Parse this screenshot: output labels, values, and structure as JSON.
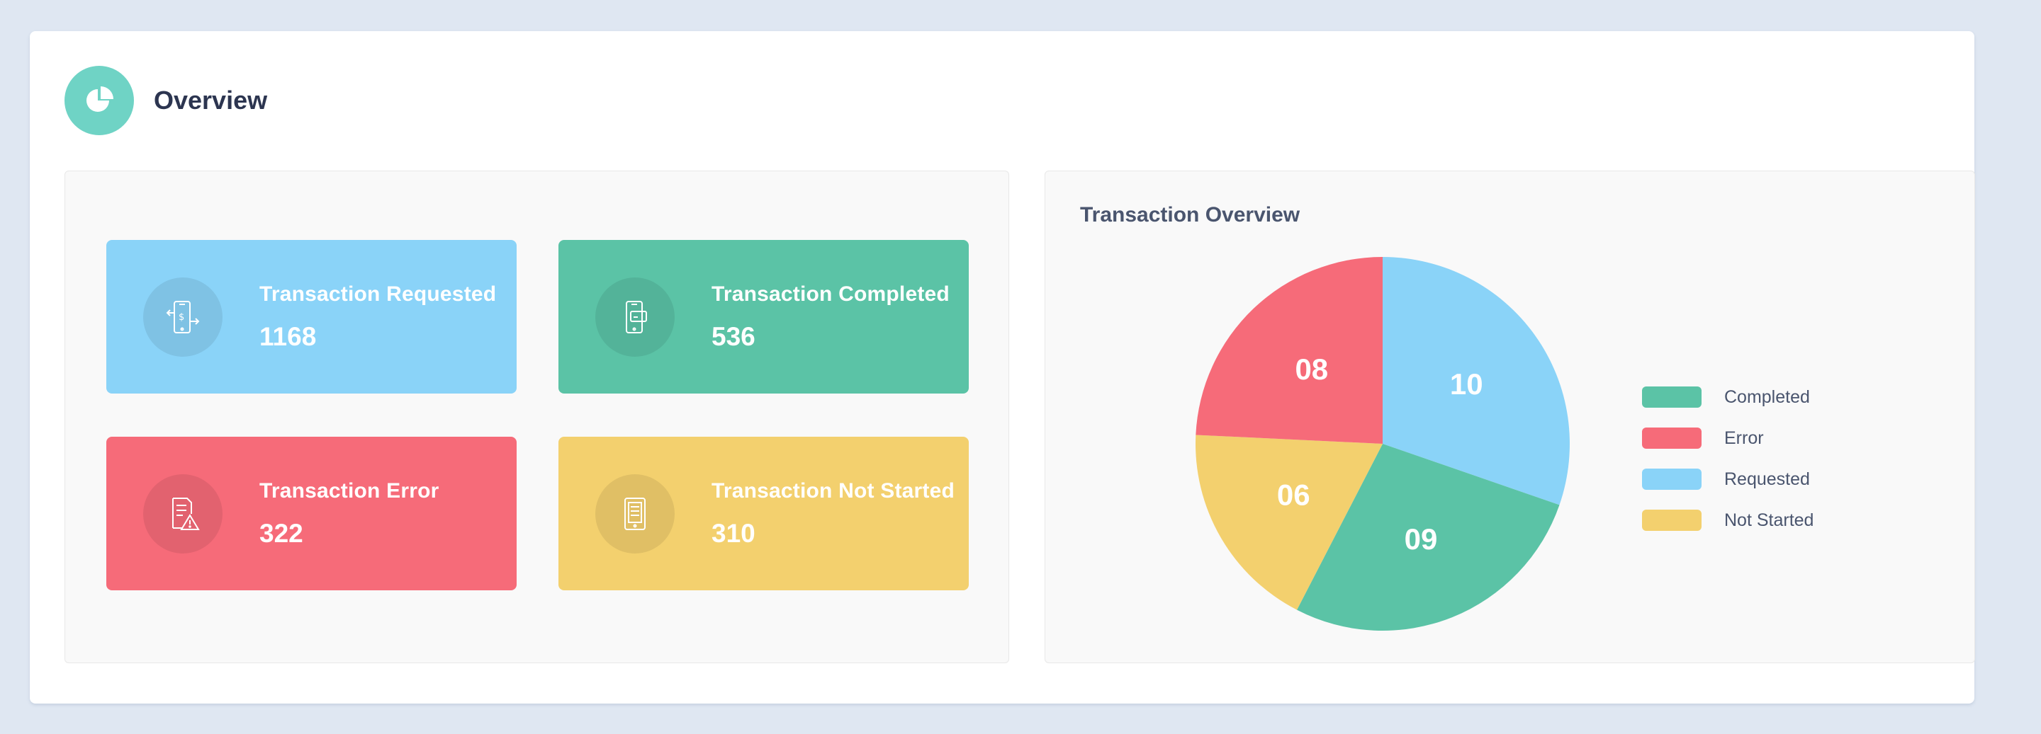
{
  "header": {
    "title": "Overview",
    "icon": "pie-chart-icon"
  },
  "stats": [
    {
      "label": "Transaction Requested",
      "value": "1168",
      "color": "#8ad3f8",
      "icon": "phone-transfer-icon"
    },
    {
      "label": "Transaction Completed",
      "value": "536",
      "color": "#5bc3a6",
      "icon": "phone-card-icon"
    },
    {
      "label": "Transaction Error",
      "value": "322",
      "color": "#f66b79",
      "icon": "document-warning-icon"
    },
    {
      "label": "Transaction Not Started",
      "value": "310",
      "color": "#f3d06e",
      "icon": "tablet-list-icon"
    }
  ],
  "chart_data": {
    "type": "pie",
    "title": "Transaction Overview",
    "slices": [
      {
        "label": "Requested",
        "value": 10,
        "display": "10",
        "color": "#8ad3f8"
      },
      {
        "label": "Completed",
        "value": 9,
        "display": "09",
        "color": "#5bc3a6"
      },
      {
        "label": "Not Started",
        "value": 6,
        "display": "06",
        "color": "#f3d06e"
      },
      {
        "label": "Error",
        "value": 8,
        "display": "08",
        "color": "#f66b79"
      }
    ],
    "legend": [
      {
        "label": "Completed",
        "color": "#5bc3a6"
      },
      {
        "label": "Error",
        "color": "#f66b79"
      },
      {
        "label": "Requested",
        "color": "#8ad3f8"
      },
      {
        "label": "Not Started",
        "color": "#f3d06e"
      }
    ],
    "legend_position": "right"
  }
}
